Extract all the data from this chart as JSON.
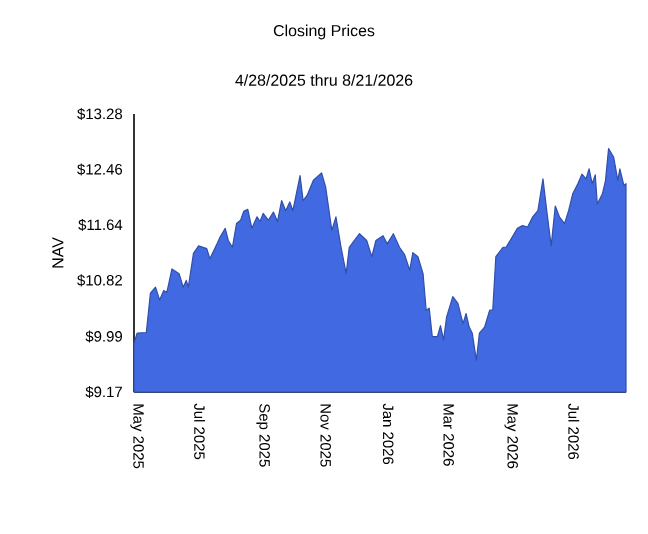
{
  "chart_data": {
    "type": "area",
    "title": "Closing Prices",
    "subtitle": "4/28/2025 thru 8/21/2026",
    "ylabel": "NAV",
    "x": [
      "2025-04-28",
      "2025-05-01",
      "2025-05-10",
      "2025-05-14",
      "2025-05-19",
      "2025-05-23",
      "2025-05-27",
      "2025-05-30",
      "2025-06-04",
      "2025-06-11",
      "2025-06-15",
      "2025-06-18",
      "2025-06-20",
      "2025-06-25",
      "2025-06-30",
      "2025-07-08",
      "2025-07-11",
      "2025-07-18",
      "2025-07-21",
      "2025-07-26",
      "2025-07-29",
      "2025-08-02",
      "2025-08-06",
      "2025-08-10",
      "2025-08-13",
      "2025-08-17",
      "2025-08-21",
      "2025-08-26",
      "2025-08-29",
      "2025-09-01",
      "2025-09-06",
      "2025-09-11",
      "2025-09-15",
      "2025-09-19",
      "2025-09-23",
      "2025-09-27",
      "2025-09-30",
      "2025-10-07",
      "2025-10-10",
      "2025-10-14",
      "2025-10-20",
      "2025-10-28",
      "2025-11-01",
      "2025-11-07",
      "2025-11-11",
      "2025-11-16",
      "2025-11-21",
      "2025-11-24",
      "2025-11-29",
      "2025-12-04",
      "2025-12-11",
      "2025-12-16",
      "2025-12-20",
      "2025-12-27",
      "2025-12-31",
      "2026-01-06",
      "2026-01-12",
      "2026-01-17",
      "2026-01-22",
      "2026-01-25",
      "2026-01-30",
      "2026-02-04",
      "2026-02-07",
      "2026-02-10",
      "2026-02-13",
      "2026-02-18",
      "2026-02-21",
      "2026-02-24",
      "2026-02-27",
      "2026-03-05",
      "2026-03-10",
      "2026-03-15",
      "2026-03-18",
      "2026-03-21",
      "2026-03-24",
      "2026-03-28",
      "2026-03-31",
      "2026-04-05",
      "2026-04-10",
      "2026-04-13",
      "2026-04-16",
      "2026-04-23",
      "2026-04-26",
      "2026-05-02",
      "2026-05-07",
      "2026-05-12",
      "2026-05-17",
      "2026-05-22",
      "2026-05-27",
      "2026-06-01",
      "2026-06-05",
      "2026-06-09",
      "2026-06-13",
      "2026-06-17",
      "2026-06-22",
      "2026-06-26",
      "2026-06-30",
      "2026-07-05",
      "2026-07-09",
      "2026-07-13",
      "2026-07-16",
      "2026-07-19",
      "2026-07-22",
      "2026-07-24",
      "2026-07-29",
      "2026-08-01",
      "2026-08-04",
      "2026-08-09",
      "2026-08-13",
      "2026-08-15",
      "2026-08-19",
      "2026-08-21"
    ],
    "series": [
      {
        "color": "#4169e1",
        "values": [
          9.89,
          10.04,
          10.05,
          10.63,
          10.72,
          10.53,
          10.67,
          10.64,
          10.99,
          10.92,
          10.72,
          10.82,
          10.72,
          11.22,
          11.33,
          11.29,
          11.14,
          11.36,
          11.46,
          11.59,
          11.41,
          11.31,
          11.66,
          11.71,
          11.84,
          11.87,
          11.59,
          11.76,
          11.69,
          11.81,
          11.71,
          11.83,
          11.69,
          12.0,
          11.85,
          11.98,
          11.85,
          12.37,
          12.0,
          12.08,
          12.3,
          12.41,
          12.2,
          11.56,
          11.76,
          11.31,
          10.92,
          11.31,
          11.41,
          11.51,
          11.41,
          11.17,
          11.41,
          11.48,
          11.36,
          11.51,
          11.31,
          11.2,
          10.97,
          11.23,
          11.17,
          10.92,
          10.38,
          10.41,
          9.99,
          9.99,
          10.15,
          9.94,
          10.28,
          10.58,
          10.48,
          10.18,
          10.33,
          10.13,
          10.04,
          9.64,
          10.04,
          10.13,
          10.38,
          10.38,
          11.17,
          11.31,
          11.31,
          11.46,
          11.59,
          11.63,
          11.61,
          11.76,
          11.85,
          12.32,
          11.81,
          11.33,
          11.92,
          11.76,
          11.66,
          11.85,
          12.1,
          12.25,
          12.39,
          12.32,
          12.47,
          12.25,
          12.38,
          11.95,
          12.1,
          12.3,
          12.77,
          12.64,
          12.3,
          12.47,
          12.22,
          12.25
        ]
      }
    ],
    "xlim": [
      "2025-04-28",
      "2026-08-21"
    ],
    "xticks": [
      {
        "value": "2025-05-01",
        "label": "May  2025"
      },
      {
        "value": "2025-07-01",
        "label": "Jul  2025"
      },
      {
        "value": "2025-09-01",
        "label": "Sep  2025"
      },
      {
        "value": "2025-11-01",
        "label": "Nov  2025"
      },
      {
        "value": "2026-01-01",
        "label": "Jan  2026"
      },
      {
        "value": "2026-03-01",
        "label": "Mar  2026"
      },
      {
        "value": "2026-05-01",
        "label": "May  2026"
      },
      {
        "value": "2026-07-01",
        "label": "Jul  2026"
      }
    ],
    "ylim": [
      9.17,
      13.28
    ],
    "yticks": [
      {
        "value": 9.17,
        "label": "$9.17"
      },
      {
        "value": 9.99,
        "label": "$9.99"
      },
      {
        "value": 10.82,
        "label": "$10.82"
      },
      {
        "value": 11.64,
        "label": "$11.64"
      },
      {
        "value": 12.46,
        "label": "$12.46"
      },
      {
        "value": 13.28,
        "label": "$13.28"
      }
    ]
  }
}
